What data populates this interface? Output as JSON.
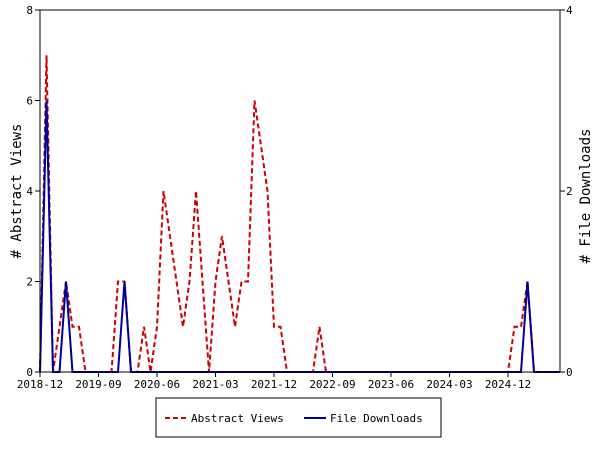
{
  "chart_data": {
    "type": "line",
    "title": "",
    "ylabel_left": "# Abstract Views",
    "ylabel_right": "# File Downloads",
    "ylim_left": [
      0,
      8
    ],
    "ylim_right": [
      0,
      4
    ],
    "yticks_left": [
      "0",
      "2",
      "4",
      "6",
      "8"
    ],
    "yticks_right": [
      "0",
      "2",
      "4"
    ],
    "xlim": [
      0,
      80
    ],
    "xticks": [
      {
        "x": 0,
        "label": "2018-12"
      },
      {
        "x": 9,
        "label": "2019-09"
      },
      {
        "x": 18,
        "label": "2020-06"
      },
      {
        "x": 27,
        "label": "2021-03"
      },
      {
        "x": 36,
        "label": "2021-12"
      },
      {
        "x": 45,
        "label": "2022-09"
      },
      {
        "x": 54,
        "label": "2023-06"
      },
      {
        "x": 63,
        "label": "2024-03"
      },
      {
        "x": 72,
        "label": "2024-12"
      }
    ],
    "legend_position": "bottom",
    "series": [
      {
        "name": "Abstract Views",
        "axis": "left",
        "color": "#cc0000",
        "style": "dashed",
        "points": [
          [
            0,
            0
          ],
          [
            1,
            7
          ],
          [
            2,
            0
          ],
          [
            3,
            1
          ],
          [
            4,
            2
          ],
          [
            5,
            1
          ],
          [
            6,
            1
          ],
          [
            7,
            0
          ],
          [
            8,
            0
          ],
          [
            9,
            0
          ],
          [
            10,
            0
          ],
          [
            11,
            0
          ],
          [
            12,
            2
          ],
          [
            13,
            2
          ],
          [
            14,
            0
          ],
          [
            15,
            0
          ],
          [
            16,
            1
          ],
          [
            17,
            0
          ],
          [
            18,
            1
          ],
          [
            19,
            4
          ],
          [
            20,
            3
          ],
          [
            21,
            2
          ],
          [
            22,
            1
          ],
          [
            23,
            2
          ],
          [
            24,
            4
          ],
          [
            25,
            2
          ],
          [
            26,
            0
          ],
          [
            27,
            2
          ],
          [
            28,
            3
          ],
          [
            29,
            2
          ],
          [
            30,
            1
          ],
          [
            31,
            2
          ],
          [
            32,
            2
          ],
          [
            33,
            6
          ],
          [
            34,
            5
          ],
          [
            35,
            4
          ],
          [
            36,
            1
          ],
          [
            37,
            1
          ],
          [
            38,
            0
          ],
          [
            39,
            0
          ],
          [
            40,
            0
          ],
          [
            41,
            0
          ],
          [
            42,
            0
          ],
          [
            43,
            1
          ],
          [
            44,
            0
          ],
          [
            45,
            0
          ],
          [
            46,
            0
          ],
          [
            47,
            0
          ],
          [
            48,
            0
          ],
          [
            49,
            0
          ],
          [
            50,
            0
          ],
          [
            51,
            0
          ],
          [
            52,
            0
          ],
          [
            53,
            0
          ],
          [
            54,
            0
          ],
          [
            55,
            0
          ],
          [
            56,
            0
          ],
          [
            57,
            0
          ],
          [
            58,
            0
          ],
          [
            59,
            0
          ],
          [
            60,
            0
          ],
          [
            61,
            0
          ],
          [
            62,
            0
          ],
          [
            63,
            0
          ],
          [
            64,
            0
          ],
          [
            65,
            0
          ],
          [
            66,
            0
          ],
          [
            67,
            0
          ],
          [
            68,
            0
          ],
          [
            69,
            0
          ],
          [
            70,
            0
          ],
          [
            71,
            0
          ],
          [
            72,
            0
          ],
          [
            73,
            1
          ],
          [
            74,
            1
          ],
          [
            75,
            2
          ],
          [
            76,
            0
          ],
          [
            77,
            0
          ],
          [
            78,
            0
          ],
          [
            79,
            0
          ],
          [
            80,
            0
          ]
        ]
      },
      {
        "name": "File Downloads",
        "axis": "right",
        "color": "#000099",
        "style": "solid",
        "points": [
          [
            0,
            0
          ],
          [
            1,
            3
          ],
          [
            2,
            0
          ],
          [
            3,
            0
          ],
          [
            4,
            1
          ],
          [
            5,
            0
          ],
          [
            6,
            0
          ],
          [
            7,
            0
          ],
          [
            8,
            0
          ],
          [
            9,
            0
          ],
          [
            10,
            0
          ],
          [
            11,
            0
          ],
          [
            12,
            0
          ],
          [
            13,
            1
          ],
          [
            14,
            0
          ],
          [
            15,
            0
          ],
          [
            16,
            0
          ],
          [
            17,
            0
          ],
          [
            18,
            0
          ],
          [
            19,
            0
          ],
          [
            20,
            0
          ],
          [
            21,
            0
          ],
          [
            22,
            0
          ],
          [
            23,
            0
          ],
          [
            24,
            0
          ],
          [
            25,
            0
          ],
          [
            26,
            0
          ],
          [
            27,
            0
          ],
          [
            28,
            0
          ],
          [
            29,
            0
          ],
          [
            30,
            0
          ],
          [
            31,
            0
          ],
          [
            32,
            0
          ],
          [
            33,
            0
          ],
          [
            34,
            0
          ],
          [
            35,
            0
          ],
          [
            36,
            0
          ],
          [
            37,
            0
          ],
          [
            38,
            0
          ],
          [
            39,
            0
          ],
          [
            40,
            0
          ],
          [
            41,
            0
          ],
          [
            42,
            0
          ],
          [
            43,
            0
          ],
          [
            44,
            0
          ],
          [
            45,
            0
          ],
          [
            46,
            0
          ],
          [
            47,
            0
          ],
          [
            48,
            0
          ],
          [
            49,
            0
          ],
          [
            50,
            0
          ],
          [
            51,
            0
          ],
          [
            52,
            0
          ],
          [
            53,
            0
          ],
          [
            54,
            0
          ],
          [
            55,
            0
          ],
          [
            56,
            0
          ],
          [
            57,
            0
          ],
          [
            58,
            0
          ],
          [
            59,
            0
          ],
          [
            60,
            0
          ],
          [
            61,
            0
          ],
          [
            62,
            0
          ],
          [
            63,
            0
          ],
          [
            64,
            0
          ],
          [
            65,
            0
          ],
          [
            66,
            0
          ],
          [
            67,
            0
          ],
          [
            68,
            0
          ],
          [
            69,
            0
          ],
          [
            70,
            0
          ],
          [
            71,
            0
          ],
          [
            72,
            0
          ],
          [
            73,
            0
          ],
          [
            74,
            0
          ],
          [
            75,
            1
          ],
          [
            76,
            0
          ],
          [
            77,
            0
          ],
          [
            78,
            0
          ],
          [
            79,
            0
          ],
          [
            80,
            0
          ]
        ]
      }
    ]
  }
}
